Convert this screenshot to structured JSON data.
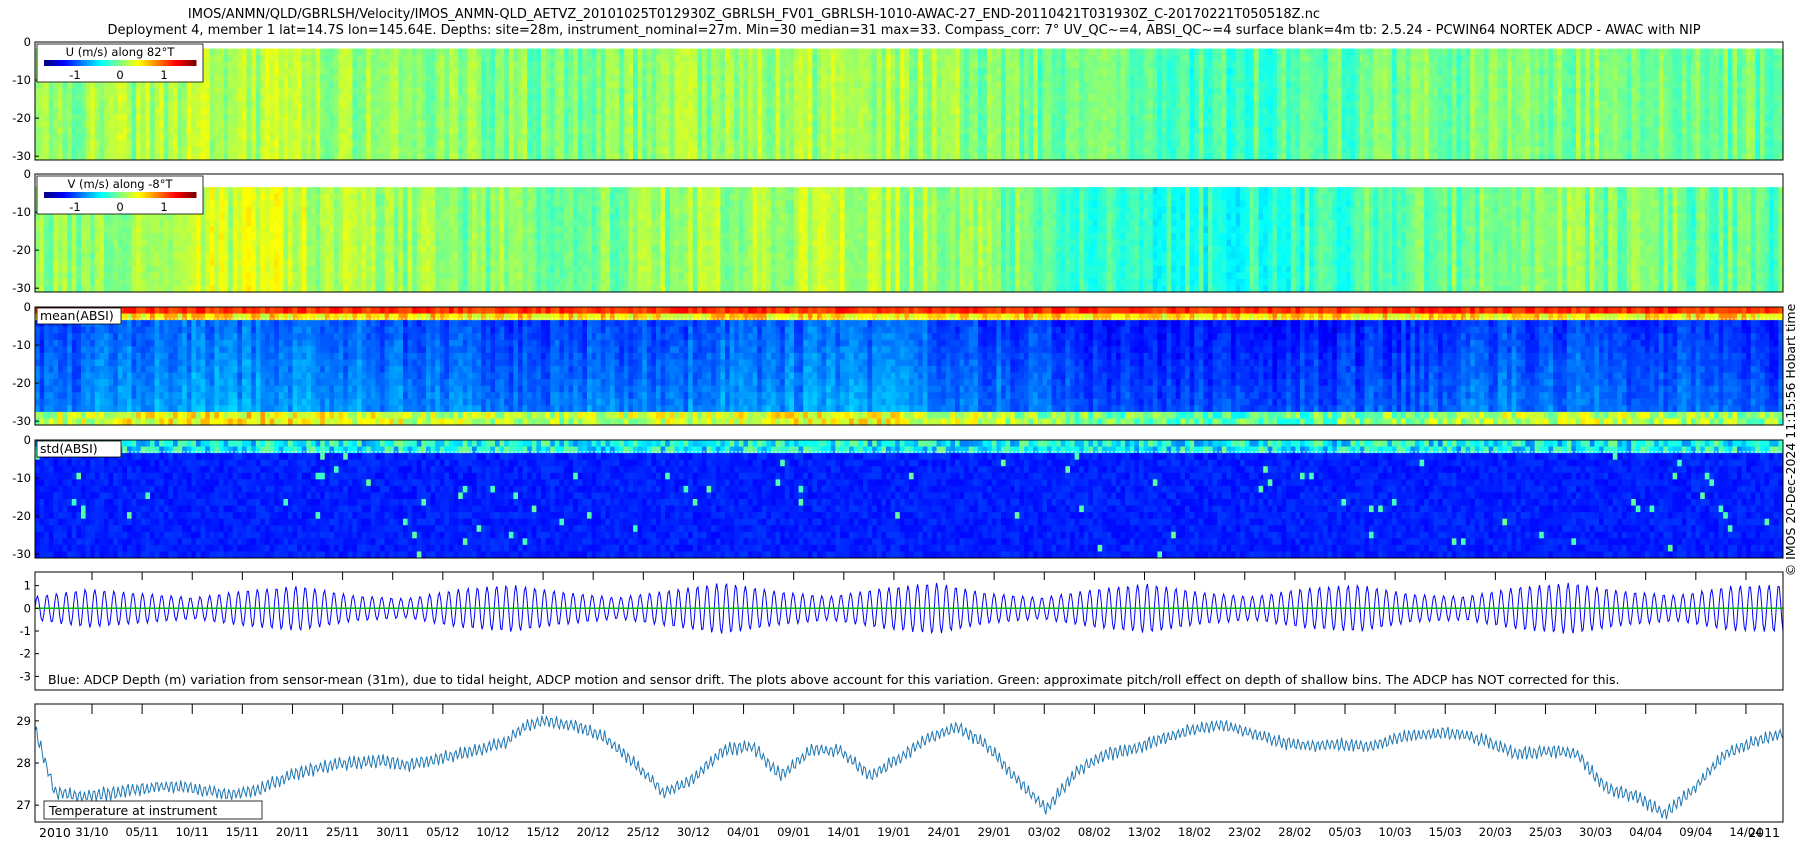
{
  "title_line1": "IMOS/ANMN/QLD/GBRLSH/Velocity/IMOS_ANMN-QLD_AETVZ_20101025T012930Z_GBRLSH_FV01_GBRLSH-1010-AWAC-27_END-20110421T031930Z_C-20170221T050518Z.nc",
  "title_line2": "Deployment 4, member 1 lat=14.7S lon=145.64E. Depths: site=28m, instrument_nominal=27m. Min=30 median=31 max=33. Compass_corr: 7° UV_QC~=4, ABSI_QC~=4 surface blank=4m tb: 2.5.24 - PCWIN64 NORTEK ADCP - AWAC with NIP",
  "side_label": "© IMOS 20-Dec-2024 11:15:56 Hobart time",
  "colors": {
    "depth_line": "#0000ff",
    "pitch_roll_line": "#00c000",
    "temperature_line": "#1f77b4"
  },
  "chart_data": [
    {
      "type": "heatmap",
      "panel": "U",
      "label": "U (m/s) along 82°T",
      "colorbar_ticks": [
        "-1",
        "0",
        "1"
      ],
      "clim": [
        -1.5,
        1.5
      ],
      "y_ticks": [
        "0",
        "-10",
        "-20",
        "-30"
      ],
      "ylim": [
        -31,
        0
      ],
      "colormap": "jet"
    },
    {
      "type": "heatmap",
      "panel": "V",
      "label": "V (m/s) along -8°T",
      "colorbar_ticks": [
        "-1",
        "0",
        "1"
      ],
      "clim": [
        -1.5,
        1.5
      ],
      "y_ticks": [
        "0",
        "-10",
        "-20",
        "-30"
      ],
      "ylim": [
        -31,
        0
      ],
      "colormap": "jet"
    },
    {
      "type": "heatmap",
      "panel": "mean_absi",
      "label": "mean(ABSI)",
      "y_ticks": [
        "0",
        "-10",
        "-20",
        "-30"
      ],
      "ylim": [
        -31,
        0
      ],
      "colormap": "jet"
    },
    {
      "type": "heatmap",
      "panel": "std_absi",
      "label": "std(ABSI)",
      "y_ticks": [
        "0",
        "-10",
        "-20",
        "-30"
      ],
      "ylim": [
        -31,
        0
      ],
      "colormap": "jet"
    },
    {
      "type": "line",
      "panel": "depth",
      "annotation": "Blue: ADCP Depth (m) variation from sensor-mean (31m), due to tidal height, ADCP motion and sensor drift. The plots above account for this variation. Green: approximate pitch/roll effect on depth of shallow bins. The ADCP has NOT corrected for this.",
      "y_ticks": [
        "1",
        "0",
        "-1",
        "-2",
        "-3"
      ],
      "ylim": [
        -3.6,
        1.6
      ],
      "series": [
        {
          "name": "ADCP Depth variation",
          "amplitude_envelope": [
            0.55,
            0.9,
            0.7,
            0.5,
            0.85,
            1.05,
            0.6,
            0.45,
            0.9,
            1.1,
            0.75,
            0.5,
            0.85,
            1.2,
            0.8,
            0.55,
            0.95,
            1.2,
            0.7,
            0.5,
            0.9,
            1.15,
            0.75,
            0.55,
            0.95,
            1.1,
            0.65,
            0.55,
            1.0,
            1.2,
            0.8,
            0.6,
            1.05,
            1.1
          ]
        },
        {
          "name": "pitch/roll effect",
          "values": [
            0.0,
            0.0
          ]
        }
      ]
    },
    {
      "type": "line",
      "panel": "temperature",
      "annotation": "Temperature at instrument",
      "y_ticks": [
        "29",
        "28",
        "27"
      ],
      "ylim": [
        26.6,
        29.4
      ],
      "x_tick_labels": [
        "31/10",
        "05/11",
        "10/11",
        "15/11",
        "20/11",
        "25/11",
        "30/11",
        "05/12",
        "10/12",
        "15/12",
        "20/12",
        "25/12",
        "30/12",
        "04/01",
        "09/01",
        "14/01",
        "19/01",
        "24/01",
        "29/01",
        "03/02",
        "08/02",
        "13/02",
        "18/02",
        "23/02",
        "28/02",
        "05/03",
        "10/03",
        "15/03",
        "20/03",
        "25/03",
        "30/03",
        "04/04",
        "09/04",
        "14/04"
      ],
      "year_labels": [
        "2010",
        "2011"
      ],
      "series": [
        {
          "name": "Temperature",
          "days": [
            0,
            2,
            5,
            8,
            11,
            14,
            17,
            20,
            23,
            26,
            29,
            32,
            35,
            38,
            41,
            43,
            45,
            48,
            50,
            52,
            55,
            58,
            61,
            64,
            67,
            70,
            73,
            76,
            79,
            82,
            85,
            88,
            91,
            94,
            97,
            100,
            103,
            106,
            109,
            112,
            115,
            118,
            121,
            124,
            127,
            130,
            133,
            136,
            139,
            142,
            145,
            148,
            151,
            154,
            157,
            160,
            163,
            166,
            169,
            172,
            175,
            178
          ],
          "values": [
            28.8,
            27.3,
            27.2,
            27.3,
            27.4,
            27.45,
            27.35,
            27.25,
            27.4,
            27.7,
            27.9,
            28.0,
            28.05,
            27.95,
            28.1,
            28.2,
            28.3,
            28.5,
            28.9,
            29.0,
            28.9,
            28.6,
            28.0,
            27.3,
            27.6,
            28.3,
            28.4,
            27.7,
            28.3,
            28.3,
            27.7,
            28.1,
            28.6,
            28.85,
            28.4,
            27.6,
            26.9,
            27.8,
            28.2,
            28.35,
            28.6,
            28.8,
            28.9,
            28.7,
            28.5,
            28.4,
            28.45,
            28.4,
            28.6,
            28.7,
            28.7,
            28.5,
            28.2,
            28.3,
            28.2,
            27.4,
            27.2,
            26.8,
            27.4,
            28.2,
            28.5,
            28.7
          ]
        }
      ]
    }
  ]
}
